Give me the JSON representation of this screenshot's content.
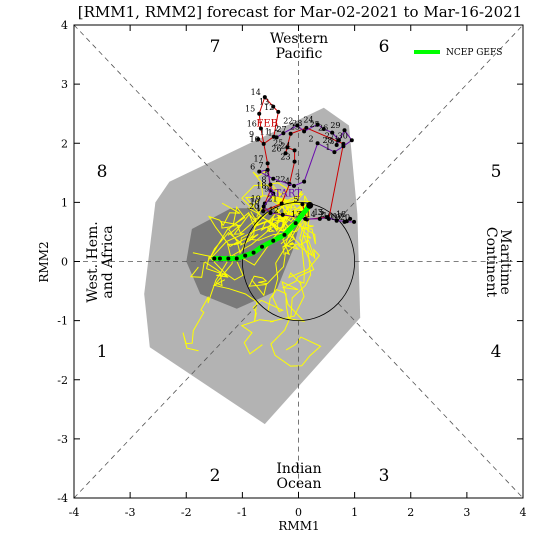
{
  "chart_data": {
    "type": "scatter",
    "title": "[RMM1, RMM2] forecast for Mar-02-2021 to Mar-16-2021",
    "xlabel": "RMM1",
    "ylabel": "RMM2",
    "xlim": [
      -4,
      4
    ],
    "ylim": [
      -4,
      4
    ],
    "x_ticks": [
      -4,
      -3,
      -2,
      -1,
      0,
      1,
      2,
      3,
      4
    ],
    "y_ticks": [
      -4,
      -3,
      -2,
      -1,
      0,
      1,
      2,
      3,
      4
    ],
    "phase_numbers": [
      {
        "label": "1",
        "x": -3.5,
        "y": -1.5
      },
      {
        "label": "2",
        "x": -1.5,
        "y": -3.6
      },
      {
        "label": "3",
        "x": 1.5,
        "y": -3.6
      },
      {
        "label": "4",
        "x": 3.5,
        "y": -1.5
      },
      {
        "label": "5",
        "x": 3.5,
        "y": 1.5
      },
      {
        "label": "6",
        "x": 1.5,
        "y": 3.6
      },
      {
        "label": "7",
        "x": -1.5,
        "y": 3.6
      },
      {
        "label": "8",
        "x": -3.5,
        "y": 1.5
      }
    ],
    "region_labels": {
      "top": [
        "Western",
        "Pacific"
      ],
      "bottom": [
        "Indian",
        "Ocean"
      ],
      "left": [
        "West. Hem.",
        "and Africa"
      ],
      "right": [
        "Maritime",
        "Continent"
      ]
    },
    "legend": {
      "label": "NCEP GEFS",
      "color": "#00ff00"
    },
    "colors": {
      "outer_spread": "#b3b3b3",
      "inner_spread": "#7a7a7a",
      "members": "#ffff00",
      "ensemble_mean": "#00ff00",
      "feb_observed": "#cc0000",
      "mar_observed": "#6a0dad"
    },
    "observed_labels": {
      "feb": "FEB",
      "start": "START"
    },
    "feb_observed": [
      {
        "day": "9",
        "x": -0.72,
        "y": 2.07
      },
      {
        "day": "10",
        "x": -0.62,
        "y": 1.99
      },
      {
        "day": "11",
        "x": -0.44,
        "y": 2.11
      },
      {
        "day": "12",
        "x": -0.36,
        "y": 2.53
      },
      {
        "day": "13",
        "x": -0.45,
        "y": 2.62
      },
      {
        "day": "14",
        "x": -0.6,
        "y": 2.78
      },
      {
        "day": "15",
        "x": -0.7,
        "y": 2.5
      },
      {
        "day": "16",
        "x": -0.67,
        "y": 2.25
      },
      {
        "day": "17",
        "x": -0.55,
        "y": 1.66
      },
      {
        "day": "18",
        "x": -0.5,
        "y": 1.2
      },
      {
        "day": "19",
        "x": -0.6,
        "y": 0.98
      },
      {
        "day": "20",
        "x": -0.63,
        "y": 0.85
      },
      {
        "day": "21",
        "x": -0.3,
        "y": 0.98
      },
      {
        "day": "22",
        "x": -0.16,
        "y": 1.31
      },
      {
        "day": "23",
        "x": -0.07,
        "y": 1.69
      },
      {
        "day": "24",
        "x": -0.07,
        "y": 1.88
      },
      {
        "day": "25",
        "x": -0.2,
        "y": 1.93
      },
      {
        "day": "26",
        "x": -0.23,
        "y": 1.83
      },
      {
        "day": "27",
        "x": -0.14,
        "y": 2.16
      },
      {
        "day": "28",
        "x": 0.14,
        "y": 2.26
      },
      {
        "day": "1",
        "x": 0.8,
        "y": 1.99
      },
      {
        "day": "2",
        "x": 0.54,
        "y": 0.72
      },
      {
        "day": "3",
        "x": 0.5,
        "y": 0.75
      },
      {
        "day": "4",
        "x": 0.15,
        "y": 0.71
      },
      {
        "day": "5",
        "x": 0.07,
        "y": 0.97
      }
    ],
    "mar_observed": [
      {
        "day": "1",
        "x": -0.39,
        "y": 2.1
      },
      {
        "day": "2",
        "x": -0.27,
        "y": 2.17
      },
      {
        "day": "22",
        "x": -0.02,
        "y": 2.3
      },
      {
        "day": "23",
        "x": 0.1,
        "y": 2.2
      },
      {
        "day": "24",
        "x": 0.34,
        "y": 2.32
      },
      {
        "day": "25",
        "x": 0.45,
        "y": 2.24
      },
      {
        "day": "26",
        "x": 0.6,
        "y": 2.18
      },
      {
        "day": "27",
        "x": 0.72,
        "y": 2.05
      },
      {
        "day": "28",
        "x": 0.68,
        "y": 1.97
      },
      {
        "day": "29",
        "x": 0.82,
        "y": 2.22
      },
      {
        "day": "30",
        "x": 0.95,
        "y": 2.05
      },
      {
        "day": "31",
        "x": 0.8,
        "y": 1.95
      },
      {
        "day": "1",
        "x": 0.64,
        "y": 1.85
      },
      {
        "day": "2",
        "x": 0.34,
        "y": 2.0
      },
      {
        "day": "3",
        "x": 0.1,
        "y": 1.35
      },
      {
        "day": "4",
        "x": -0.08,
        "y": 1.28
      },
      {
        "day": "5",
        "x": -0.45,
        "y": 1.4
      },
      {
        "day": "6",
        "x": -0.7,
        "y": 1.52
      },
      {
        "day": "7",
        "x": -0.55,
        "y": 1.55
      },
      {
        "day": "8",
        "x": -0.5,
        "y": 1.3
      },
      {
        "day": "9",
        "x": -0.45,
        "y": 1.15
      },
      {
        "day": "10",
        "x": -0.62,
        "y": 0.93
      },
      {
        "day": "11",
        "x": -0.5,
        "y": 0.82
      },
      {
        "day": "12",
        "x": -0.28,
        "y": 0.79
      },
      {
        "day": "13",
        "x": 0.12,
        "y": 0.72
      },
      {
        "day": "14",
        "x": 0.38,
        "y": 0.72
      },
      {
        "day": "15",
        "x": 0.52,
        "y": 0.75
      },
      {
        "day": "16",
        "x": 0.68,
        "y": 0.69
      },
      {
        "day": "17",
        "x": 0.86,
        "y": 0.68
      },
      {
        "day": "18",
        "x": 0.92,
        "y": 0.72
      },
      {
        "day": "19",
        "x": 0.82,
        "y": 0.67
      },
      {
        "day": "20",
        "x": 0.99,
        "y": 0.67
      }
    ],
    "ensemble_mean": [
      {
        "x": 0.2,
        "y": 0.95
      },
      {
        "x": -0.05,
        "y": 0.65
      },
      {
        "x": -0.25,
        "y": 0.45
      },
      {
        "x": -0.45,
        "y": 0.35
      },
      {
        "x": -0.65,
        "y": 0.25
      },
      {
        "x": -0.8,
        "y": 0.15
      },
      {
        "x": -0.95,
        "y": 0.1
      },
      {
        "x": -1.1,
        "y": 0.05
      },
      {
        "x": -1.25,
        "y": 0.05
      },
      {
        "x": -1.4,
        "y": 0.05
      },
      {
        "x": -1.5,
        "y": 0.05
      }
    ]
  }
}
